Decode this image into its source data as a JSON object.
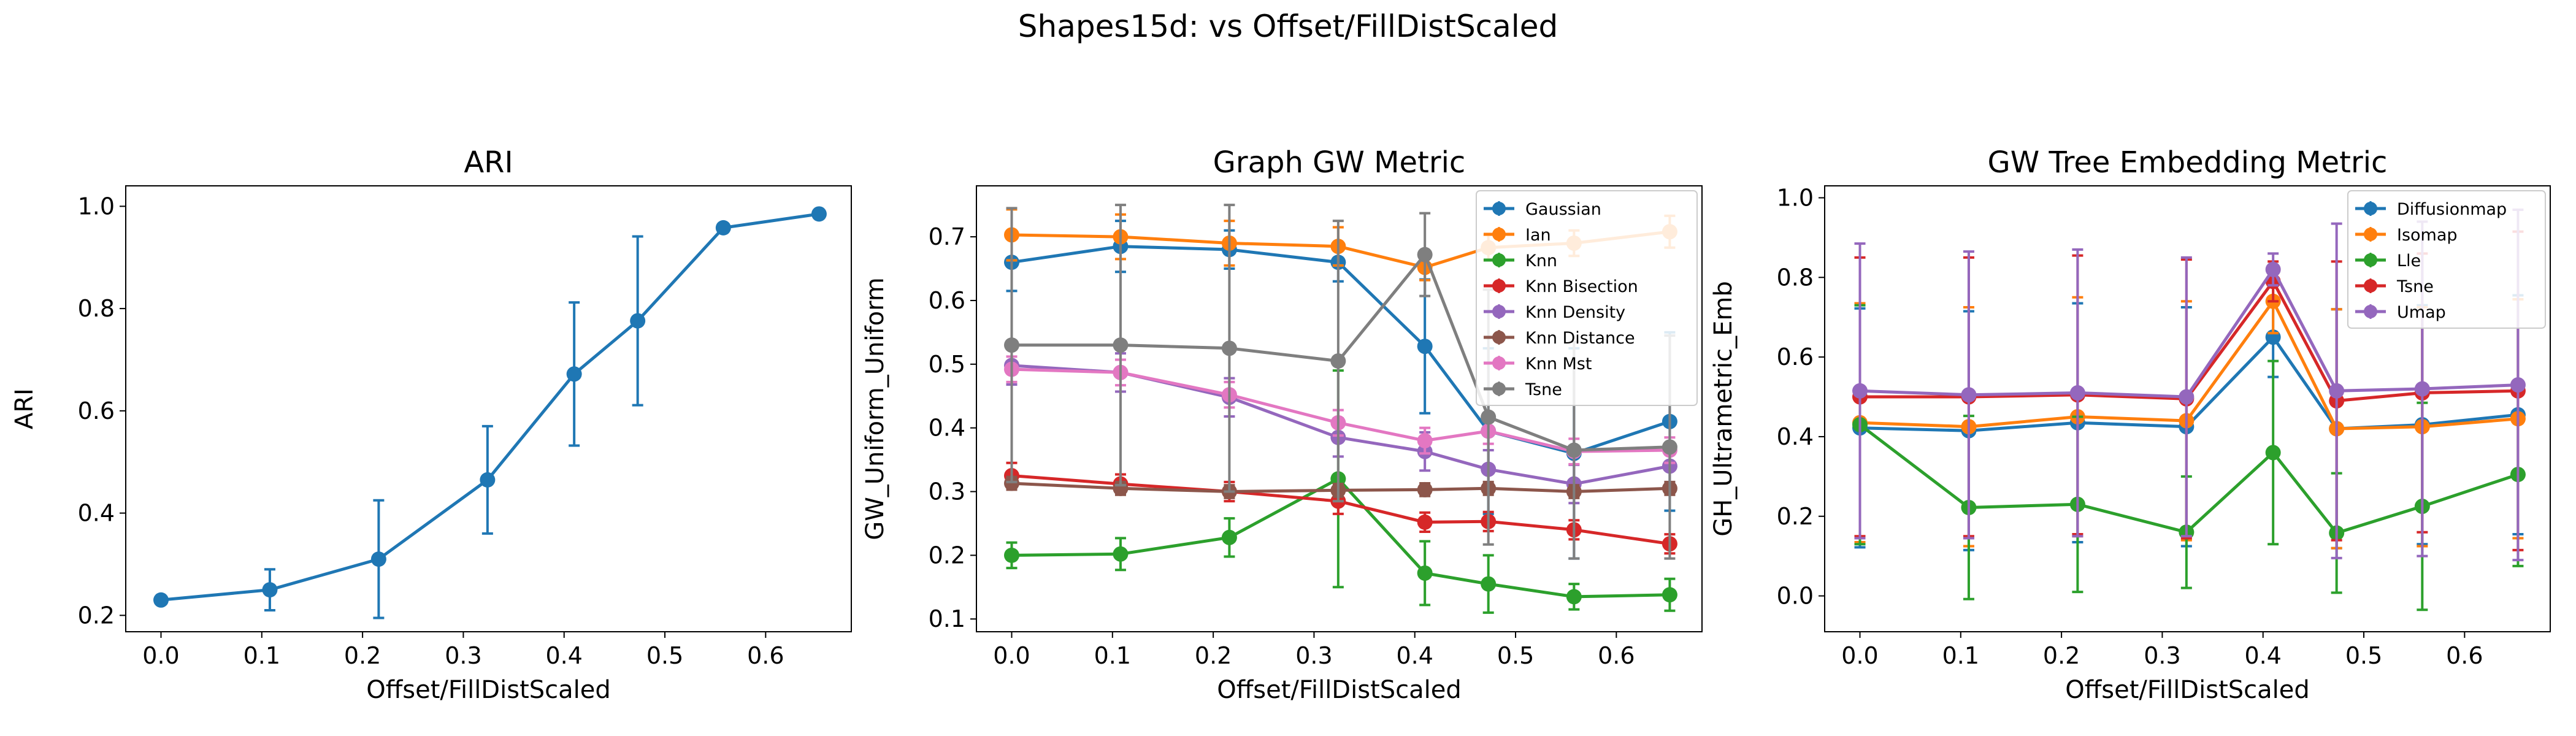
{
  "figure": {
    "suptitle": "Shapes15d: vs Offset/FillDistScaled"
  },
  "chart_data": [
    {
      "type": "line",
      "title": "ARI",
      "xlabel": "Offset/FillDistScaled",
      "ylabel": "ARI",
      "xlim": [
        -0.035,
        0.685
      ],
      "ylim": [
        0.168,
        1.04
      ],
      "xticks": [
        0.0,
        0.1,
        0.2,
        0.3,
        0.4,
        0.5,
        0.6
      ],
      "yticks": [
        0.2,
        0.4,
        0.6,
        0.8,
        1.0
      ],
      "xtick_labels": [
        "0.0",
        "0.1",
        "0.2",
        "0.3",
        "0.4",
        "0.5",
        "0.6"
      ],
      "ytick_labels": [
        "0.2",
        "0.4",
        "0.6",
        "0.8",
        "1.0"
      ],
      "grid": false,
      "legend": null,
      "x": [
        0.0,
        0.108,
        0.216,
        0.324,
        0.41,
        0.473,
        0.558,
        0.653
      ],
      "series": [
        {
          "color": "#1f77b4",
          "values": [
            0.23,
            0.25,
            0.31,
            0.465,
            0.672,
            0.776,
            0.958,
            0.985
          ],
          "errors": [
            0.0,
            0.04,
            0.115,
            0.105,
            0.14,
            0.165,
            0.0,
            0.0
          ]
        }
      ]
    },
    {
      "type": "line",
      "title": "Graph GW Metric",
      "xlabel": "Offset/FillDistScaled",
      "ylabel": "GW_Uniform_Uniform",
      "xlim": [
        -0.035,
        0.685
      ],
      "ylim": [
        0.08,
        0.78
      ],
      "xticks": [
        0.0,
        0.1,
        0.2,
        0.3,
        0.4,
        0.5,
        0.6
      ],
      "yticks": [
        0.1,
        0.2,
        0.3,
        0.4,
        0.5,
        0.6,
        0.7
      ],
      "xtick_labels": [
        "0.0",
        "0.1",
        "0.2",
        "0.3",
        "0.4",
        "0.5",
        "0.6"
      ],
      "ytick_labels": [
        "0.1",
        "0.2",
        "0.3",
        "0.4",
        "0.5",
        "0.6",
        "0.7"
      ],
      "grid": false,
      "legend": "top-right",
      "x": [
        0.0,
        0.108,
        0.216,
        0.324,
        0.41,
        0.473,
        0.558,
        0.653
      ],
      "series": [
        {
          "name": "Gaussian",
          "color": "#1f77b4",
          "values": [
            0.66,
            0.685,
            0.68,
            0.66,
            0.528,
            0.395,
            0.36,
            0.41
          ],
          "errors": [
            0.045,
            0.04,
            0.03,
            0.03,
            0.105,
            0.13,
            0.165,
            0.14
          ]
        },
        {
          "name": "Ian",
          "color": "#ff7f0e",
          "values": [
            0.703,
            0.7,
            0.69,
            0.685,
            0.652,
            0.683,
            0.69,
            0.708
          ],
          "errors": [
            0.04,
            0.035,
            0.035,
            0.03,
            0.02,
            0.02,
            0.02,
            0.025
          ]
        },
        {
          "name": "Knn",
          "color": "#2ca02c",
          "values": [
            0.2,
            0.202,
            0.228,
            0.32,
            0.172,
            0.155,
            0.135,
            0.138
          ],
          "errors": [
            0.02,
            0.025,
            0.03,
            0.17,
            0.05,
            0.045,
            0.02,
            0.025
          ]
        },
        {
          "name": "Knn Bisection",
          "color": "#d62728",
          "values": [
            0.325,
            0.312,
            0.3,
            0.285,
            0.252,
            0.253,
            0.24,
            0.218
          ],
          "errors": [
            0.02,
            0.015,
            0.015,
            0.02,
            0.015,
            0.015,
            0.015,
            0.015
          ]
        },
        {
          "name": "Knn Density",
          "color": "#9467bd",
          "values": [
            0.498,
            0.487,
            0.448,
            0.385,
            0.363,
            0.335,
            0.312,
            0.34
          ],
          "errors": [
            0.03,
            0.03,
            0.03,
            0.03,
            0.03,
            0.03,
            0.03,
            0.03
          ]
        },
        {
          "name": "Knn Distance",
          "color": "#8c564b",
          "values": [
            0.313,
            0.305,
            0.3,
            0.302,
            0.303,
            0.305,
            0.3,
            0.305
          ],
          "errors": [
            0.01,
            0.01,
            0.01,
            0.01,
            0.01,
            0.01,
            0.01,
            0.01
          ]
        },
        {
          "name": "Knn Mst",
          "color": "#e377c2",
          "values": [
            0.492,
            0.487,
            0.452,
            0.408,
            0.38,
            0.395,
            0.363,
            0.365
          ],
          "errors": [
            0.02,
            0.02,
            0.02,
            0.02,
            0.02,
            0.02,
            0.02,
            0.02
          ]
        },
        {
          "name": "Tsne",
          "color": "#7f7f7f",
          "values": [
            0.53,
            0.53,
            0.525,
            0.505,
            0.672,
            0.417,
            0.365,
            0.37
          ],
          "errors": [
            0.215,
            0.22,
            0.225,
            0.22,
            0.065,
            0.2,
            0.17,
            0.175
          ]
        }
      ]
    },
    {
      "type": "line",
      "title": "GW Tree Embedding Metric",
      "xlabel": "Offset/FillDistScaled",
      "ylabel": "GH_Ultrametric_Emb",
      "xlim": [
        -0.035,
        0.685
      ],
      "ylim": [
        -0.09,
        1.03
      ],
      "xticks": [
        0.0,
        0.1,
        0.2,
        0.3,
        0.4,
        0.5,
        0.6
      ],
      "yticks": [
        0.0,
        0.2,
        0.4,
        0.6,
        0.8,
        1.0
      ],
      "xtick_labels": [
        "0.0",
        "0.1",
        "0.2",
        "0.3",
        "0.4",
        "0.5",
        "0.6"
      ],
      "ytick_labels": [
        "0.0",
        "0.2",
        "0.4",
        "0.6",
        "0.8",
        "1.0"
      ],
      "grid": false,
      "legend": "top-right",
      "x": [
        0.0,
        0.108,
        0.216,
        0.324,
        0.41,
        0.473,
        0.558,
        0.653
      ],
      "series": [
        {
          "name": "Diffusionmap",
          "color": "#1f77b4",
          "values": [
            0.422,
            0.415,
            0.435,
            0.425,
            0.65,
            0.42,
            0.43,
            0.455
          ],
          "errors": [
            0.3,
            0.3,
            0.3,
            0.3,
            0.1,
            0.3,
            0.3,
            0.3
          ]
        },
        {
          "name": "Isomap",
          "color": "#ff7f0e",
          "values": [
            0.435,
            0.425,
            0.45,
            0.44,
            0.74,
            0.42,
            0.425,
            0.445
          ],
          "errors": [
            0.3,
            0.3,
            0.3,
            0.3,
            0.08,
            0.3,
            0.3,
            0.3
          ]
        },
        {
          "name": "Lle",
          "color": "#2ca02c",
          "values": [
            0.43,
            0.222,
            0.23,
            0.16,
            0.36,
            0.158,
            0.225,
            0.305
          ],
          "errors": [
            0.3,
            0.23,
            0.22,
            0.14,
            0.23,
            0.15,
            0.26,
            0.23
          ]
        },
        {
          "name": "Tsne",
          "color": "#d62728",
          "values": [
            0.5,
            0.5,
            0.505,
            0.495,
            0.79,
            0.49,
            0.51,
            0.515
          ],
          "errors": [
            0.35,
            0.35,
            0.35,
            0.35,
            0.05,
            0.35,
            0.35,
            0.4
          ]
        },
        {
          "name": "Umap",
          "color": "#9467bd",
          "values": [
            0.515,
            0.505,
            0.51,
            0.5,
            0.82,
            0.515,
            0.52,
            0.53
          ],
          "errors": [
            0.37,
            0.36,
            0.36,
            0.35,
            0.04,
            0.42,
            0.42,
            0.44
          ]
        }
      ]
    }
  ]
}
